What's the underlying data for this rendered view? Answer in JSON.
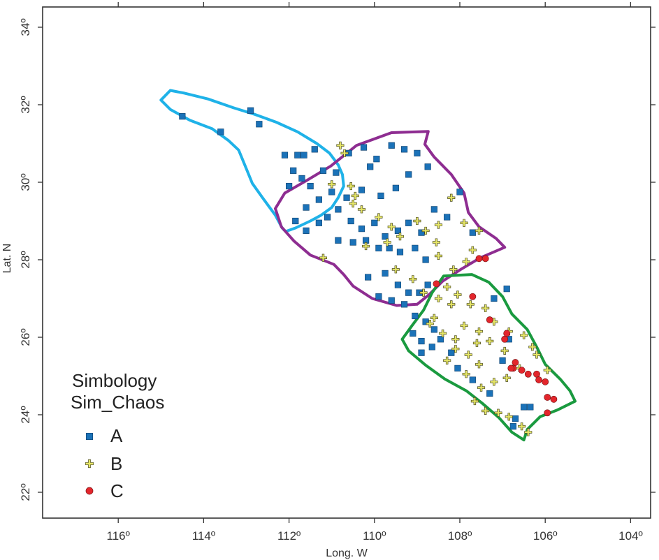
{
  "chart_data": {
    "type": "scatter",
    "map": true,
    "xlabel": "Long. W",
    "ylabel": "Lat. N",
    "xlim": [
      -117.7,
      -103.7
    ],
    "ylim": [
      21.3,
      34.4
    ],
    "xticks": [
      {
        "value": -116,
        "label": "116º"
      },
      {
        "value": -114,
        "label": "114º"
      },
      {
        "value": -112,
        "label": "112º"
      },
      {
        "value": -110,
        "label": "110º"
      },
      {
        "value": -108,
        "label": "108º"
      },
      {
        "value": -106,
        "label": "106º"
      },
      {
        "value": -104,
        "label": "104º"
      }
    ],
    "yticks": [
      {
        "value": 22,
        "label": "22º"
      },
      {
        "value": 24,
        "label": "24º"
      },
      {
        "value": 26,
        "label": "26º"
      },
      {
        "value": 28,
        "label": "28º"
      },
      {
        "value": 30,
        "label": "30º"
      },
      {
        "value": 32,
        "label": "32º"
      },
      {
        "value": 34,
        "label": "34º"
      }
    ],
    "grid": false,
    "legend": {
      "title": "Simbology",
      "subtitle": "Sim_Chaos",
      "position": "bottom-left",
      "entries": [
        {
          "label": "A",
          "marker": "square",
          "color": "#1b72b8"
        },
        {
          "label": "B",
          "marker": "plus",
          "color": "#e6e667"
        },
        {
          "label": "C",
          "marker": "circle",
          "color": "#e3262c"
        }
      ]
    },
    "regions": [
      {
        "color": "#1fb2e8",
        "points": [
          [
            -114.78,
            32.37
          ],
          [
            -114.45,
            32.3
          ],
          [
            -113.9,
            32.15
          ],
          [
            -113.3,
            31.92
          ],
          [
            -112.8,
            31.75
          ],
          [
            -112.3,
            31.55
          ],
          [
            -111.8,
            31.3
          ],
          [
            -111.35,
            31.0
          ],
          [
            -111.05,
            30.75
          ],
          [
            -110.85,
            30.45
          ],
          [
            -110.75,
            30.2
          ],
          [
            -110.72,
            29.9
          ],
          [
            -110.85,
            29.6
          ],
          [
            -111.0,
            29.35
          ],
          [
            -111.25,
            29.15
          ],
          [
            -111.5,
            29.0
          ],
          [
            -111.85,
            28.82
          ],
          [
            -112.08,
            28.73
          ],
          [
            -112.16,
            28.82
          ],
          [
            -112.32,
            29.15
          ],
          [
            -112.62,
            29.6
          ],
          [
            -112.86,
            29.97
          ],
          [
            -113.02,
            30.4
          ],
          [
            -113.18,
            30.83
          ],
          [
            -113.42,
            31.08
          ],
          [
            -113.8,
            31.38
          ],
          [
            -114.32,
            31.6
          ],
          [
            -114.78,
            31.88
          ],
          [
            -115.0,
            32.12
          ],
          [
            -114.78,
            32.37
          ]
        ]
      },
      {
        "color": "#8e2d91",
        "points": [
          [
            -110.42,
            30.95
          ],
          [
            -109.6,
            31.28
          ],
          [
            -108.74,
            31.31
          ],
          [
            -108.82,
            30.98
          ],
          [
            -108.6,
            30.65
          ],
          [
            -108.2,
            30.2
          ],
          [
            -107.9,
            29.72
          ],
          [
            -107.8,
            29.22
          ],
          [
            -107.55,
            28.85
          ],
          [
            -107.15,
            28.55
          ],
          [
            -106.95,
            28.32
          ],
          [
            -107.52,
            28.05
          ],
          [
            -107.98,
            27.75
          ],
          [
            -108.4,
            27.45
          ],
          [
            -108.72,
            27.1
          ],
          [
            -109.0,
            26.85
          ],
          [
            -109.48,
            26.82
          ],
          [
            -110.05,
            27.0
          ],
          [
            -110.5,
            27.32
          ],
          [
            -110.72,
            27.62
          ],
          [
            -110.95,
            27.88
          ],
          [
            -111.5,
            28.12
          ],
          [
            -111.88,
            28.48
          ],
          [
            -112.18,
            28.85
          ],
          [
            -112.32,
            29.32
          ],
          [
            -112.1,
            29.72
          ],
          [
            -111.58,
            30.05
          ],
          [
            -111.02,
            30.42
          ],
          [
            -110.42,
            30.95
          ]
        ]
      },
      {
        "color": "#1a9a3f",
        "points": [
          [
            -108.38,
            27.58
          ],
          [
            -107.72,
            27.62
          ],
          [
            -107.32,
            27.42
          ],
          [
            -107.0,
            27.05
          ],
          [
            -106.78,
            26.6
          ],
          [
            -106.42,
            26.2
          ],
          [
            -106.2,
            25.75
          ],
          [
            -106.0,
            25.3
          ],
          [
            -105.65,
            24.92
          ],
          [
            -105.42,
            24.62
          ],
          [
            -105.3,
            24.35
          ],
          [
            -105.72,
            24.12
          ],
          [
            -106.12,
            23.95
          ],
          [
            -106.42,
            23.62
          ],
          [
            -106.5,
            23.35
          ],
          [
            -106.78,
            23.55
          ],
          [
            -107.08,
            23.92
          ],
          [
            -107.48,
            24.3
          ],
          [
            -107.85,
            24.62
          ],
          [
            -108.35,
            24.92
          ],
          [
            -108.8,
            25.28
          ],
          [
            -109.2,
            25.65
          ],
          [
            -109.35,
            25.95
          ],
          [
            -109.12,
            26.3
          ],
          [
            -108.85,
            26.7
          ],
          [
            -108.65,
            27.15
          ],
          [
            -108.38,
            27.58
          ]
        ]
      }
    ],
    "series": [
      {
        "name": "A",
        "marker": "square",
        "color": "#1b72b8",
        "points": [
          [
            -114.5,
            31.7
          ],
          [
            -113.6,
            31.3
          ],
          [
            -112.9,
            31.85
          ],
          [
            -112.7,
            31.5
          ],
          [
            -112.1,
            30.7
          ],
          [
            -111.8,
            30.7
          ],
          [
            -111.65,
            30.7
          ],
          [
            -111.4,
            30.85
          ],
          [
            -111.9,
            30.3
          ],
          [
            -112.0,
            29.9
          ],
          [
            -111.7,
            30.1
          ],
          [
            -111.5,
            29.9
          ],
          [
            -111.2,
            30.3
          ],
          [
            -110.9,
            30.25
          ],
          [
            -110.6,
            30.75
          ],
          [
            -110.25,
            30.9
          ],
          [
            -110.1,
            30.4
          ],
          [
            -109.95,
            30.6
          ],
          [
            -109.6,
            30.95
          ],
          [
            -109.3,
            30.85
          ],
          [
            -109.0,
            30.75
          ],
          [
            -108.75,
            30.4
          ],
          [
            -109.2,
            30.2
          ],
          [
            -109.5,
            29.85
          ],
          [
            -109.85,
            29.65
          ],
          [
            -110.3,
            29.8
          ],
          [
            -110.65,
            29.6
          ],
          [
            -111.0,
            29.75
          ],
          [
            -111.3,
            29.55
          ],
          [
            -111.6,
            29.35
          ],
          [
            -111.85,
            29.0
          ],
          [
            -111.6,
            28.75
          ],
          [
            -111.3,
            28.95
          ],
          [
            -111.1,
            29.1
          ],
          [
            -110.85,
            29.3
          ],
          [
            -110.55,
            29.0
          ],
          [
            -110.3,
            28.8
          ],
          [
            -110.0,
            28.95
          ],
          [
            -109.75,
            28.6
          ],
          [
            -109.45,
            28.75
          ],
          [
            -109.2,
            28.95
          ],
          [
            -108.9,
            28.7
          ],
          [
            -108.6,
            29.3
          ],
          [
            -108.3,
            29.1
          ],
          [
            -108.0,
            29.75
          ],
          [
            -107.7,
            28.7
          ],
          [
            -110.85,
            28.5
          ],
          [
            -110.5,
            28.45
          ],
          [
            -110.2,
            28.5
          ],
          [
            -109.9,
            28.3
          ],
          [
            -109.65,
            28.3
          ],
          [
            -109.4,
            28.2
          ],
          [
            -109.05,
            28.3
          ],
          [
            -108.8,
            28.0
          ],
          [
            -110.15,
            27.55
          ],
          [
            -109.75,
            27.65
          ],
          [
            -109.45,
            27.35
          ],
          [
            -109.2,
            27.15
          ],
          [
            -109.9,
            27.05
          ],
          [
            -109.6,
            26.95
          ],
          [
            -109.3,
            26.85
          ],
          [
            -108.95,
            27.15
          ],
          [
            -108.75,
            27.35
          ],
          [
            -109.05,
            26.55
          ],
          [
            -108.8,
            26.4
          ],
          [
            -108.6,
            26.2
          ],
          [
            -109.1,
            26.1
          ],
          [
            -108.9,
            25.9
          ],
          [
            -108.65,
            25.75
          ],
          [
            -108.45,
            25.95
          ],
          [
            -108.2,
            25.6
          ],
          [
            -108.9,
            25.6
          ],
          [
            -108.05,
            25.2
          ],
          [
            -107.7,
            24.9
          ],
          [
            -107.3,
            24.55
          ],
          [
            -107.0,
            25.4
          ],
          [
            -106.85,
            25.95
          ],
          [
            -107.2,
            27.0
          ],
          [
            -106.9,
            27.25
          ],
          [
            -106.7,
            23.9
          ],
          [
            -106.5,
            24.2
          ],
          [
            -106.35,
            24.2
          ],
          [
            -106.75,
            23.7
          ]
        ]
      },
      {
        "name": "B",
        "marker": "plus",
        "color": "#e6e667",
        "points": [
          [
            -110.8,
            30.95
          ],
          [
            -110.7,
            30.75
          ],
          [
            -111.0,
            29.95
          ],
          [
            -110.55,
            29.9
          ],
          [
            -110.45,
            29.65
          ],
          [
            -110.5,
            29.45
          ],
          [
            -110.3,
            29.3
          ],
          [
            -109.9,
            29.1
          ],
          [
            -109.6,
            28.85
          ],
          [
            -109.4,
            28.6
          ],
          [
            -109.0,
            29.0
          ],
          [
            -108.8,
            28.75
          ],
          [
            -108.5,
            28.9
          ],
          [
            -108.55,
            28.45
          ],
          [
            -108.2,
            29.6
          ],
          [
            -107.9,
            28.95
          ],
          [
            -107.55,
            28.75
          ],
          [
            -107.7,
            28.25
          ],
          [
            -107.85,
            27.95
          ],
          [
            -108.15,
            27.75
          ],
          [
            -108.5,
            28.1
          ],
          [
            -110.2,
            28.35
          ],
          [
            -109.7,
            28.45
          ],
          [
            -111.2,
            28.05
          ],
          [
            -108.3,
            27.3
          ],
          [
            -108.05,
            27.1
          ],
          [
            -107.75,
            26.85
          ],
          [
            -107.4,
            26.75
          ],
          [
            -107.2,
            26.4
          ],
          [
            -106.85,
            26.15
          ],
          [
            -106.5,
            26.05
          ],
          [
            -106.3,
            25.75
          ],
          [
            -106.6,
            25.2
          ],
          [
            -106.9,
            24.95
          ],
          [
            -107.2,
            24.85
          ],
          [
            -107.5,
            24.7
          ],
          [
            -107.65,
            24.35
          ],
          [
            -107.4,
            24.1
          ],
          [
            -107.1,
            24.05
          ],
          [
            -106.85,
            23.95
          ],
          [
            -106.55,
            23.7
          ],
          [
            -106.4,
            23.55
          ],
          [
            -108.1,
            25.7
          ],
          [
            -107.8,
            25.55
          ],
          [
            -107.55,
            25.3
          ],
          [
            -107.85,
            25.05
          ],
          [
            -108.3,
            25.4
          ],
          [
            -108.7,
            26.35
          ],
          [
            -108.4,
            26.1
          ],
          [
            -108.1,
            25.95
          ],
          [
            -107.55,
            26.15
          ],
          [
            -107.3,
            25.9
          ],
          [
            -106.95,
            25.65
          ],
          [
            -105.95,
            25.15
          ],
          [
            -106.2,
            25.55
          ],
          [
            -109.5,
            27.75
          ],
          [
            -109.1,
            27.5
          ],
          [
            -108.85,
            27.15
          ],
          [
            -108.5,
            27.0
          ],
          [
            -108.2,
            26.85
          ],
          [
            -108.6,
            26.5
          ],
          [
            -107.9,
            26.3
          ],
          [
            -107.6,
            25.85
          ]
        ]
      },
      {
        "name": "C",
        "marker": "circle",
        "color": "#e3262c",
        "points": [
          [
            -107.55,
            28.03
          ],
          [
            -107.4,
            28.03
          ],
          [
            -108.55,
            27.38
          ],
          [
            -107.7,
            27.05
          ],
          [
            -107.3,
            26.45
          ],
          [
            -106.9,
            26.1
          ],
          [
            -106.95,
            25.95
          ],
          [
            -106.7,
            25.35
          ],
          [
            -106.75,
            25.2
          ],
          [
            -106.55,
            25.15
          ],
          [
            -106.4,
            25.05
          ],
          [
            -106.2,
            25.05
          ],
          [
            -106.15,
            24.9
          ],
          [
            -106.0,
            24.85
          ],
          [
            -105.95,
            24.45
          ],
          [
            -105.8,
            24.4
          ],
          [
            -106.8,
            25.2
          ],
          [
            -105.95,
            24.05
          ]
        ]
      }
    ]
  }
}
